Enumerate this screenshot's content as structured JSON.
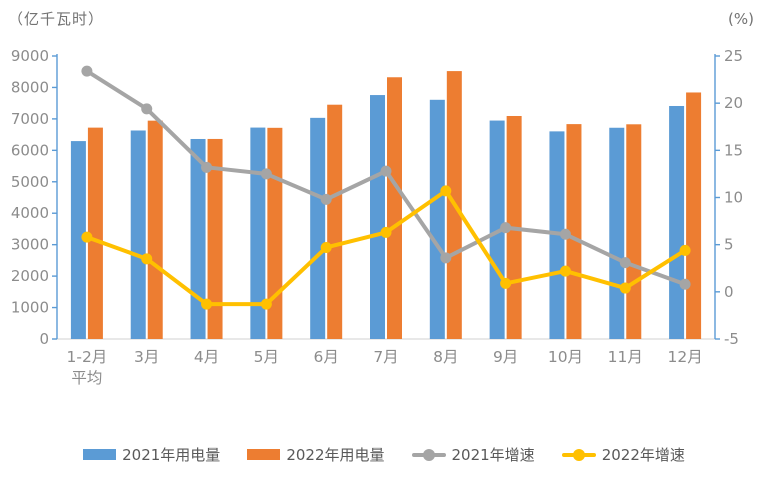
{
  "chart_data": {
    "type": "combo_bar_line",
    "title": "",
    "left_axis": {
      "title": "（亿千瓦时）",
      "min": 0,
      "max": 9000,
      "step": 1000,
      "tick_labels": [
        "9000",
        "8000",
        "7000",
        "6000",
        "5000",
        "4000",
        "3000",
        "2000",
        "1000",
        "0"
      ]
    },
    "right_axis": {
      "title": "(%)",
      "min": -5,
      "max": 25,
      "step": 5,
      "tick_labels": [
        "25",
        "20",
        "15",
        "10",
        "5",
        "0",
        "-5"
      ]
    },
    "categories": [
      "1-2月\n平均",
      "3月",
      "4月",
      "5月",
      "6月",
      "7月",
      "8月",
      "9月",
      "10月",
      "11月",
      "12月"
    ],
    "series": [
      {
        "name": "2021年用电量",
        "kind": "bar",
        "axis": "left",
        "color": "#5B9BD5",
        "values": [
          6294,
          6631,
          6361,
          6724,
          7033,
          7758,
          7607,
          6947,
          6603,
          6718,
          7410
        ]
      },
      {
        "name": "2022年用电量",
        "kind": "bar",
        "axis": "left",
        "color": "#ED7D31",
        "values": [
          6722,
          6944,
          6362,
          6716,
          7451,
          8324,
          8520,
          7092,
          6834,
          6828,
          7840
        ]
      },
      {
        "name": "2021年增速",
        "kind": "line",
        "axis": "right",
        "color": "#A5A5A5",
        "values": [
          23.4,
          19.4,
          13.2,
          12.5,
          9.8,
          12.8,
          3.6,
          6.8,
          6.1,
          3.1,
          0.8
        ]
      },
      {
        "name": "2022年增速",
        "kind": "line",
        "axis": "right",
        "color": "#FFC000",
        "values": [
          5.8,
          3.5,
          -1.3,
          -1.3,
          4.7,
          6.3,
          10.7,
          0.9,
          2.2,
          0.4,
          4.4
        ]
      }
    ],
    "legend_position": "bottom",
    "grid": false,
    "style": {
      "axis_line_color": "#5B9BD5",
      "x_axis_line_color": "#D9D9D9",
      "tick_label_color": "#8C8C8C",
      "x_label_color": "#8C8C8C",
      "background": "#FFFFFF"
    }
  }
}
